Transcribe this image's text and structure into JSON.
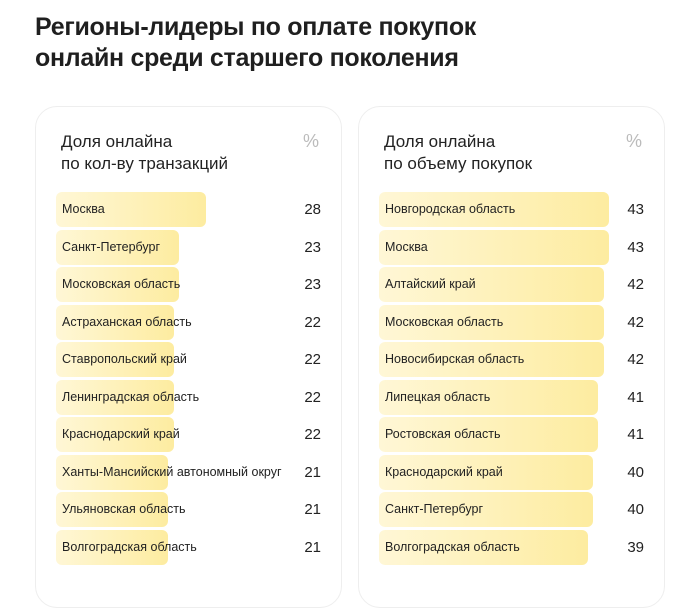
{
  "title_line1": "Регионы-лидеры по оплате покупок",
  "title_line2": "онлайн среди старшего поколения",
  "chart_data": [
    {
      "type": "bar",
      "title_line1": "Доля онлайна",
      "title_line2": "по кол-ву транзакций",
      "unit": "%",
      "color": "#fdeca0",
      "categories": [
        "Москва",
        "Санкт-Петербург",
        "Московская область",
        "Астраханская область",
        "Ставропольский край",
        "Ленинградская область",
        "Краснодарский край",
        "Ханты-Мансийский автономный округ",
        "Ульяновская область",
        "Волгоградская область"
      ],
      "values": [
        28,
        23,
        23,
        22,
        22,
        22,
        22,
        21,
        21,
        21
      ]
    },
    {
      "type": "bar",
      "title_line1": "Доля онлайна",
      "title_line2": "по объему покупок",
      "unit": "%",
      "color": "#fdeca0",
      "categories": [
        "Новгородская область",
        "Москва",
        "Алтайский край",
        "Московская область",
        "Новосибирская область",
        "Липецкая область",
        "Ростовская область",
        "Краснодарский край",
        "Санкт-Петербург",
        "Волгоградская область"
      ],
      "values": [
        43,
        43,
        42,
        42,
        42,
        41,
        41,
        40,
        40,
        39
      ]
    }
  ]
}
